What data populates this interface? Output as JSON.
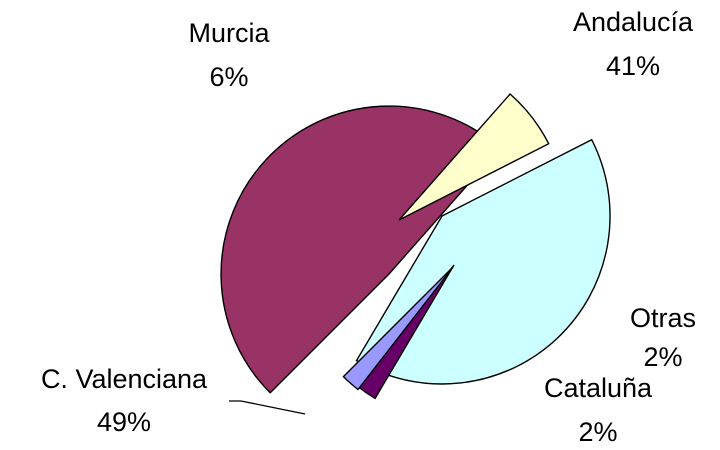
{
  "chart_data": {
    "type": "pie",
    "title": "",
    "exploded": true,
    "start_angle_deg": 135,
    "slices": [
      {
        "label": "C. Valenciana",
        "value": 49,
        "value_label": "49%",
        "color": "#993366"
      },
      {
        "label": "Murcia",
        "value": 6,
        "value_label": "6%",
        "color": "#FFFFCC"
      },
      {
        "label": "Andalucía",
        "value": 41,
        "value_label": "41%",
        "color": "#CCFFFF"
      },
      {
        "label": "Otras",
        "value": 2,
        "value_label": "2%",
        "color": "#660066"
      },
      {
        "label": "Cataluña",
        "value": 2,
        "value_label": "2%",
        "color": "#9999FF"
      }
    ]
  }
}
